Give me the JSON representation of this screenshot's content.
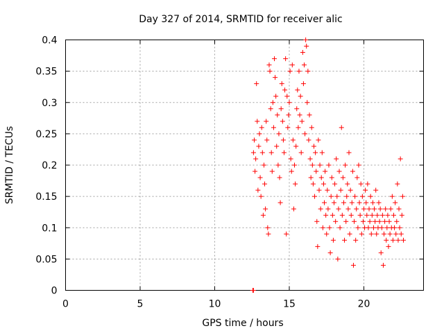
{
  "chart_data": {
    "type": "scatter",
    "title": "Day 327 of 2014, SRMTID for receiver alic",
    "xlabel": "GPS time / hours",
    "ylabel": "SRMTID / TECUs",
    "xlim": [
      0,
      24
    ],
    "ylim": [
      0,
      0.4
    ],
    "x_ticks": [
      0,
      5,
      10,
      15,
      20
    ],
    "y_ticks": [
      0,
      0.05,
      0.1,
      0.15,
      0.2,
      0.25,
      0.3,
      0.35,
      0.4
    ],
    "x_tick_labels": [
      "0",
      "5",
      "10",
      "15",
      "20"
    ],
    "y_tick_labels": [
      "0",
      "0.05",
      "0.1",
      "0.15",
      "0.2",
      "0.25",
      "0.3",
      "0.35",
      "0.4"
    ],
    "grid": true,
    "marker": "+",
    "color": "#ff0000",
    "series": [
      {
        "points": [
          [
            12.55,
            0.0
          ],
          [
            12.6,
            0.0
          ],
          [
            12.6,
            0.22
          ],
          [
            12.65,
            0.24
          ],
          [
            12.7,
            0.19
          ],
          [
            12.75,
            0.21
          ],
          [
            12.8,
            0.33
          ],
          [
            12.85,
            0.27
          ],
          [
            12.9,
            0.16
          ],
          [
            12.95,
            0.23
          ],
          [
            13.0,
            0.25
          ],
          [
            13.05,
            0.18
          ],
          [
            13.1,
            0.15
          ],
          [
            13.15,
            0.26
          ],
          [
            13.2,
            0.22
          ],
          [
            13.25,
            0.12
          ],
          [
            13.3,
            0.2
          ],
          [
            13.35,
            0.17
          ],
          [
            13.4,
            0.13
          ],
          [
            13.45,
            0.27
          ],
          [
            13.5,
            0.24
          ],
          [
            13.55,
            0.1
          ],
          [
            13.6,
            0.09
          ],
          [
            13.65,
            0.36
          ],
          [
            13.7,
            0.35
          ],
          [
            13.75,
            0.29
          ],
          [
            13.8,
            0.22
          ],
          [
            13.85,
            0.19
          ],
          [
            13.9,
            0.3
          ],
          [
            13.95,
            0.26
          ],
          [
            14.0,
            0.37
          ],
          [
            14.05,
            0.34
          ],
          [
            14.1,
            0.31
          ],
          [
            14.15,
            0.23
          ],
          [
            14.2,
            0.28
          ],
          [
            14.25,
            0.2
          ],
          [
            14.3,
            0.25
          ],
          [
            14.35,
            0.18
          ],
          [
            14.4,
            0.14
          ],
          [
            14.45,
            0.29
          ],
          [
            14.5,
            0.33
          ],
          [
            14.55,
            0.27
          ],
          [
            14.6,
            0.24
          ],
          [
            14.65,
            0.22
          ],
          [
            14.7,
            0.32
          ],
          [
            14.75,
            0.37
          ],
          [
            14.8,
            0.09
          ],
          [
            14.85,
            0.31
          ],
          [
            14.9,
            0.26
          ],
          [
            14.95,
            0.28
          ],
          [
            15.0,
            0.3
          ],
          [
            15.05,
            0.35
          ],
          [
            15.1,
            0.21
          ],
          [
            15.15,
            0.19
          ],
          [
            15.2,
            0.36
          ],
          [
            15.25,
            0.24
          ],
          [
            15.3,
            0.13
          ],
          [
            15.35,
            0.2
          ],
          [
            15.4,
            0.17
          ],
          [
            15.45,
            0.23
          ],
          [
            15.5,
            0.29
          ],
          [
            15.55,
            0.32
          ],
          [
            15.6,
            0.26
          ],
          [
            15.65,
            0.35
          ],
          [
            15.7,
            0.28
          ],
          [
            15.75,
            0.31
          ],
          [
            15.8,
            0.22
          ],
          [
            15.85,
            0.27
          ],
          [
            15.9,
            0.38
          ],
          [
            15.95,
            0.33
          ],
          [
            16.0,
            0.36
          ],
          [
            16.05,
            0.25
          ],
          [
            16.1,
            0.4
          ],
          [
            16.15,
            0.39
          ],
          [
            16.2,
            0.3
          ],
          [
            16.25,
            0.35
          ],
          [
            16.3,
            0.24
          ],
          [
            16.35,
            0.28
          ],
          [
            16.4,
            0.21
          ],
          [
            16.45,
            0.18
          ],
          [
            16.5,
            0.26
          ],
          [
            16.55,
            0.2
          ],
          [
            16.6,
            0.17
          ],
          [
            16.65,
            0.23
          ],
          [
            16.7,
            0.15
          ],
          [
            16.75,
            0.22
          ],
          [
            16.8,
            0.19
          ],
          [
            16.85,
            0.11
          ],
          [
            16.9,
            0.07
          ],
          [
            16.95,
            0.24
          ],
          [
            17.0,
            0.16
          ],
          [
            17.05,
            0.2
          ],
          [
            17.1,
            0.13
          ],
          [
            17.15,
            0.18
          ],
          [
            17.2,
            0.22
          ],
          [
            17.25,
            0.1
          ],
          [
            17.3,
            0.17
          ],
          [
            17.35,
            0.14
          ],
          [
            17.4,
            0.19
          ],
          [
            17.45,
            0.12
          ],
          [
            17.5,
            0.09
          ],
          [
            17.55,
            0.16
          ],
          [
            17.6,
            0.13
          ],
          [
            17.65,
            0.2
          ],
          [
            17.7,
            0.1
          ],
          [
            17.75,
            0.06
          ],
          [
            17.8,
            0.15
          ],
          [
            17.85,
            0.18
          ],
          [
            17.9,
            0.12
          ],
          [
            17.95,
            0.08
          ],
          [
            18.0,
            0.14
          ],
          [
            18.05,
            0.17
          ],
          [
            18.1,
            0.11
          ],
          [
            18.15,
            0.21
          ],
          [
            18.2,
            0.15
          ],
          [
            18.25,
            0.05
          ],
          [
            18.3,
            0.13
          ],
          [
            18.35,
            0.19
          ],
          [
            18.4,
            0.1
          ],
          [
            18.45,
            0.16
          ],
          [
            18.5,
            0.26
          ],
          [
            18.55,
            0.12
          ],
          [
            18.6,
            0.18
          ],
          [
            18.65,
            0.14
          ],
          [
            18.7,
            0.08
          ],
          [
            18.75,
            0.2
          ],
          [
            18.8,
            0.11
          ],
          [
            18.85,
            0.15
          ],
          [
            18.9,
            0.17
          ],
          [
            18.95,
            0.13
          ],
          [
            19.0,
            0.22
          ],
          [
            19.05,
            0.09
          ],
          [
            19.1,
            0.16
          ],
          [
            19.15,
            0.12
          ],
          [
            19.2,
            0.14
          ],
          [
            19.25,
            0.19
          ],
          [
            19.3,
            0.04
          ],
          [
            19.35,
            0.11
          ],
          [
            19.4,
            0.15
          ],
          [
            19.45,
            0.08
          ],
          [
            19.5,
            0.13
          ],
          [
            19.55,
            0.18
          ],
          [
            19.6,
            0.1
          ],
          [
            19.65,
            0.2
          ],
          [
            19.7,
            0.14
          ],
          [
            19.75,
            0.12
          ],
          [
            19.8,
            0.17
          ],
          [
            19.85,
            0.09
          ],
          [
            19.9,
            0.15
          ],
          [
            19.95,
            0.11
          ],
          [
            20.0,
            0.13
          ],
          [
            20.05,
            0.1
          ],
          [
            20.1,
            0.16
          ],
          [
            20.15,
            0.14
          ],
          [
            20.2,
            0.12
          ],
          [
            20.25,
            0.17
          ],
          [
            20.3,
            0.1
          ],
          [
            20.35,
            0.13
          ],
          [
            20.4,
            0.11
          ],
          [
            20.45,
            0.15
          ],
          [
            20.5,
            0.09
          ],
          [
            20.55,
            0.12
          ],
          [
            20.6,
            0.14
          ],
          [
            20.65,
            0.1
          ],
          [
            20.7,
            0.13
          ],
          [
            20.75,
            0.11
          ],
          [
            20.8,
            0.16
          ],
          [
            20.85,
            0.09
          ],
          [
            20.9,
            0.12
          ],
          [
            20.95,
            0.1
          ],
          [
            21.0,
            0.14
          ],
          [
            21.05,
            0.11
          ],
          [
            21.1,
            0.13
          ],
          [
            21.15,
            0.06
          ],
          [
            21.2,
            0.1
          ],
          [
            21.25,
            0.12
          ],
          [
            21.3,
            0.04
          ],
          [
            21.35,
            0.09
          ],
          [
            21.4,
            0.11
          ],
          [
            21.45,
            0.13
          ],
          [
            21.5,
            0.08
          ],
          [
            21.55,
            0.1
          ],
          [
            21.6,
            0.12
          ],
          [
            21.65,
            0.07
          ],
          [
            21.7,
            0.11
          ],
          [
            21.75,
            0.09
          ],
          [
            21.8,
            0.13
          ],
          [
            21.85,
            0.1
          ],
          [
            21.9,
            0.15
          ],
          [
            21.95,
            0.08
          ],
          [
            22.0,
            0.12
          ],
          [
            22.05,
            0.1
          ],
          [
            22.1,
            0.14
          ],
          [
            22.15,
            0.09
          ],
          [
            22.2,
            0.11
          ],
          [
            22.25,
            0.17
          ],
          [
            22.3,
            0.08
          ],
          [
            22.35,
            0.13
          ],
          [
            22.4,
            0.1
          ],
          [
            22.45,
            0.21
          ],
          [
            22.5,
            0.09
          ],
          [
            22.55,
            0.12
          ],
          [
            22.6,
            0.15
          ],
          [
            22.65,
            0.08
          ]
        ]
      }
    ]
  }
}
